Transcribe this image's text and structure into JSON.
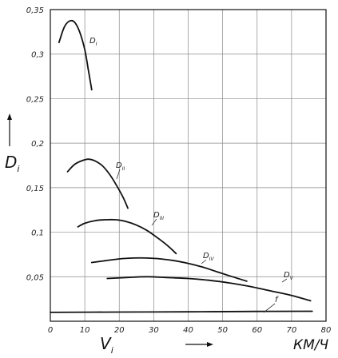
{
  "chart_data": {
    "type": "line",
    "title": "",
    "ylabel": "D",
    "ylabel_subscript": "i",
    "xlabel": "V",
    "xlabel_subscript": "i",
    "x_unit": "КМ/Ч",
    "xlim": [
      0,
      80
    ],
    "ylim": [
      0,
      0.35
    ],
    "x_ticks": [
      "0",
      "10",
      "20",
      "30",
      "40",
      "50",
      "60",
      "70",
      "80"
    ],
    "y_ticks": [
      "0,05",
      "0,1",
      "0,15",
      "0,2",
      "0,25",
      "0,3",
      "0,35"
    ],
    "y_tick_values": [
      0.05,
      0.1,
      0.15,
      0.2,
      0.25,
      0.3,
      0.35
    ],
    "grid": true,
    "series": [
      {
        "name": "D",
        "subscript": "I",
        "x": [
          2.5,
          4,
          5.5,
          7,
          8.5,
          10,
          11,
          12
        ],
        "y": [
          0.313,
          0.33,
          0.337,
          0.336,
          0.325,
          0.305,
          0.283,
          0.26
        ]
      },
      {
        "name": "D",
        "subscript": "II",
        "x": [
          5,
          7,
          9,
          11,
          13,
          15,
          17,
          19,
          21,
          22.5
        ],
        "y": [
          0.168,
          0.176,
          0.18,
          0.182,
          0.18,
          0.175,
          0.166,
          0.154,
          0.14,
          0.127
        ]
      },
      {
        "name": "D",
        "subscript": "III",
        "x": [
          8,
          10,
          13,
          16,
          19,
          22,
          25,
          28,
          31,
          34,
          36.5
        ],
        "y": [
          0.106,
          0.11,
          0.113,
          0.114,
          0.114,
          0.112,
          0.108,
          0.102,
          0.094,
          0.085,
          0.076
        ]
      },
      {
        "name": "D",
        "subscript": "IV",
        "x": [
          12,
          16,
          20,
          24,
          28,
          32,
          36,
          40,
          44,
          48,
          52,
          57
        ],
        "y": [
          0.066,
          0.068,
          0.07,
          0.071,
          0.071,
          0.07,
          0.068,
          0.065,
          0.061,
          0.056,
          0.051,
          0.045
        ]
      },
      {
        "name": "D",
        "subscript": "V",
        "x": [
          16.5,
          22,
          28,
          34,
          40,
          46,
          52,
          58,
          64,
          70,
          75.5
        ],
        "y": [
          0.048,
          0.049,
          0.05,
          0.049,
          0.048,
          0.046,
          0.043,
          0.039,
          0.034,
          0.029,
          0.023
        ]
      },
      {
        "name": "f",
        "x": [
          0,
          20,
          40,
          60,
          76
        ],
        "y": [
          0.01,
          0.0103,
          0.0106,
          0.011,
          0.0112
        ]
      }
    ]
  }
}
